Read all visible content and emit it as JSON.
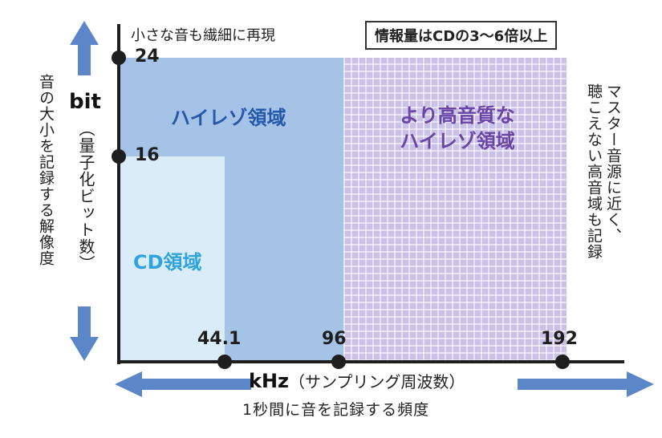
{
  "title_badge": "情報量はCDの3〜6倍以上",
  "top_note": "小さな音も繊細に再現",
  "y_axis": {
    "label": "bit",
    "sub_label": "（量子化ビット数）",
    "description": "音の大小を記録する解像度",
    "ticks": [
      "24",
      "16"
    ]
  },
  "x_axis": {
    "label": "kHz",
    "sub_label": "（サンプリング周波数）",
    "description": "1秒間に音を記録する頻度",
    "ticks": [
      "44.1",
      "96",
      "192"
    ]
  },
  "regions": {
    "cd": "CD領域",
    "hires": "ハイレゾ領域",
    "hires_plus_line1": "より高音質な",
    "hires_plus_line2": "ハイレゾ領域"
  },
  "right_note": [
    "マスター音源に近く、",
    "聴こえない高音域も記録"
  ],
  "colors": {
    "hires": "#a4c3e7",
    "hires_plus": "#c9c1e6",
    "cd": "#d9ecf8",
    "arrow": "#5b86c8",
    "label_hires": "#2458a8",
    "label_hires_plus": "#6a45a6",
    "label_cd": "#2ea3de"
  }
}
